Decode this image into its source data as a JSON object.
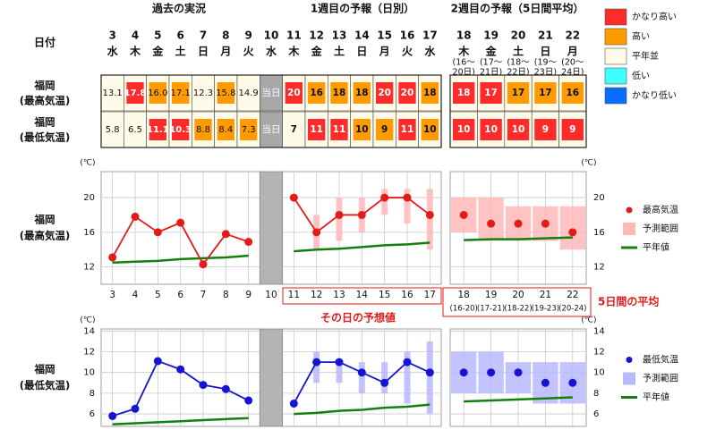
{
  "header": {
    "past": "過去の実況",
    "week1": "1週目の予報（日別）",
    "week2": "2週目の予報（5日間平均）",
    "date_label": "日付"
  },
  "legend": [
    {
      "label": "かなり高い",
      "color": "#ff2b2b"
    },
    {
      "label": "高い",
      "color": "#ff9b00"
    },
    {
      "label": "平年並",
      "color": "#fffbe8"
    },
    {
      "label": "低い",
      "color": "#40ffff"
    },
    {
      "label": "かなり低い",
      "color": "#0a6cff"
    }
  ],
  "days": [
    {
      "day": "3",
      "weekday": "水"
    },
    {
      "day": "4",
      "weekday": "木"
    },
    {
      "day": "5",
      "weekday": "金"
    },
    {
      "day": "6",
      "weekday": "土"
    },
    {
      "day": "7",
      "weekday": "日"
    },
    {
      "day": "8",
      "weekday": "月"
    },
    {
      "day": "9",
      "weekday": "火"
    },
    {
      "day": "10",
      "weekday": "水"
    },
    {
      "day": "11",
      "weekday": "木"
    },
    {
      "day": "12",
      "weekday": "金"
    },
    {
      "day": "13",
      "weekday": "土"
    },
    {
      "day": "14",
      "weekday": "日"
    },
    {
      "day": "15",
      "weekday": "月"
    },
    {
      "day": "16",
      "weekday": "火"
    },
    {
      "day": "17",
      "weekday": "水"
    },
    {
      "day": "18",
      "weekday": "木",
      "range": [
        "(16～",
        "20日)"
      ]
    },
    {
      "day": "19",
      "weekday": "金",
      "range": [
        "(17～",
        "21日)"
      ]
    },
    {
      "day": "20",
      "weekday": "土",
      "range": [
        "(18～",
        "22日)"
      ]
    },
    {
      "day": "21",
      "weekday": "日",
      "range": [
        "(19～",
        "23日)"
      ]
    },
    {
      "day": "22",
      "weekday": "月",
      "range": [
        "(20～",
        "24日)"
      ]
    }
  ],
  "rows": [
    {
      "label": [
        "福岡",
        "(最高気温)"
      ],
      "cells": [
        {
          "text": "13.1",
          "color": "#fffbe8"
        },
        {
          "text": "17.8",
          "color": "#ff2b2b"
        },
        {
          "text": "16.0",
          "color": "#ff9b00"
        },
        {
          "text": "17.1",
          "color": "#ff9b00"
        },
        {
          "text": "12.3",
          "color": "#fffbe8"
        },
        {
          "text": "15.8",
          "color": "#ff9b00"
        },
        {
          "text": "14.9",
          "color": "#fffbe8"
        },
        {
          "text": "当日",
          "color": "#a8a8a8"
        },
        {
          "text": "20",
          "color": "#ff2b2b"
        },
        {
          "text": "16",
          "color": "#ff9b00"
        },
        {
          "text": "18",
          "color": "#ff9b00"
        },
        {
          "text": "18",
          "color": "#ff9b00"
        },
        {
          "text": "20",
          "color": "#ff2b2b"
        },
        {
          "text": "20",
          "color": "#ff2b2b"
        },
        {
          "text": "18",
          "color": "#ff9b00"
        },
        {
          "text": "18",
          "color": "#ff2b2b"
        },
        {
          "text": "17",
          "color": "#ff2b2b"
        },
        {
          "text": "17",
          "color": "#ff9b00"
        },
        {
          "text": "17",
          "color": "#ff9b00"
        },
        {
          "text": "16",
          "color": "#ff9b00"
        }
      ]
    },
    {
      "label": [
        "福岡",
        "(最低気温)"
      ],
      "cells": [
        {
          "text": "5.8",
          "color": "#fffbe8"
        },
        {
          "text": "6.5",
          "color": "#fffbe8"
        },
        {
          "text": "11.1",
          "color": "#ff2b2b"
        },
        {
          "text": "10.3",
          "color": "#ff2b2b"
        },
        {
          "text": "8.8",
          "color": "#ff9b00"
        },
        {
          "text": "8.4",
          "color": "#ff9b00"
        },
        {
          "text": "7.3",
          "color": "#ff9b00"
        },
        {
          "text": "当日",
          "color": "#a8a8a8"
        },
        {
          "text": "7",
          "color": "#fffbe8"
        },
        {
          "text": "11",
          "color": "#ff2b2b"
        },
        {
          "text": "11",
          "color": "#ff2b2b"
        },
        {
          "text": "10",
          "color": "#ff9b00"
        },
        {
          "text": "9",
          "color": "#ff9b00"
        },
        {
          "text": "11",
          "color": "#ff2b2b"
        },
        {
          "text": "10",
          "color": "#ff9b00"
        },
        {
          "text": "10",
          "color": "#ff2b2b"
        },
        {
          "text": "10",
          "color": "#ff2b2b"
        },
        {
          "text": "10",
          "color": "#ff2b2b"
        },
        {
          "text": "9",
          "color": "#ff2b2b"
        },
        {
          "text": "9",
          "color": "#ff2b2b"
        }
      ]
    }
  ],
  "chart_data": [
    {
      "type": "line",
      "unit": "(℃)",
      "label": [
        "福岡",
        "(最高気温)"
      ],
      "ylim": [
        10,
        23
      ],
      "yticks": [
        12,
        16,
        20
      ],
      "grid": true,
      "color": "#e31b1b",
      "range_color": "#ffb8b8",
      "normal_color": "#12800f",
      "legend": [
        {
          "label": "最高気温",
          "kind": "dot"
        },
        {
          "label": "予測範囲",
          "kind": "range"
        },
        {
          "label": "平年値",
          "kind": "normal"
        }
      ],
      "notes": [
        "その日の予想値",
        "5日間の平均"
      ],
      "panels": [
        {
          "categories": [
            "3",
            "4",
            "5",
            "6",
            "7",
            "8",
            "9"
          ],
          "values": [
            13.1,
            17.8,
            16.0,
            17.1,
            12.3,
            15.8,
            14.9
          ],
          "normal": [
            12.5,
            12.6,
            12.7,
            12.9,
            13.0,
            13.1,
            13.3
          ],
          "connect": true
        },
        {
          "categories": [
            "10"
          ],
          "shaded": true
        },
        {
          "categories": [
            "11",
            "12",
            "13",
            "14",
            "15",
            "16",
            "17"
          ],
          "values": [
            20,
            16,
            18,
            18,
            20,
            20,
            18
          ],
          "low": [
            null,
            14,
            15,
            16,
            18,
            17,
            14
          ],
          "high": [
            null,
            18,
            20,
            20,
            21,
            21,
            21
          ],
          "normal": [
            13.8,
            14.0,
            14.1,
            14.3,
            14.5,
            14.6,
            14.8
          ],
          "connect": true
        },
        {
          "categories": [
            "18",
            "19",
            "20",
            "21",
            "22"
          ],
          "sub_labels": [
            "(16-20)",
            "(17-21)",
            "(18-22)",
            "(19-23)",
            "(20-24)"
          ],
          "values": [
            18,
            17,
            17,
            17,
            16
          ],
          "low": [
            16,
            15,
            15,
            15,
            14
          ],
          "high": [
            20,
            20,
            19,
            19,
            19
          ],
          "normal": [
            15.1,
            15.2,
            15.2,
            15.3,
            15.4
          ],
          "connect": false
        }
      ]
    },
    {
      "type": "line",
      "unit": "(℃)",
      "label": [
        "福岡",
        "(最低気温)"
      ],
      "ylim": [
        4.8,
        14.2
      ],
      "yticks": [
        6,
        8,
        10,
        12,
        14
      ],
      "grid": true,
      "color": "#1414d2",
      "range_color": "#b8b8ff",
      "normal_color": "#12800f",
      "legend": [
        {
          "label": "最低気温",
          "kind": "dot"
        },
        {
          "label": "予測範囲",
          "kind": "range"
        },
        {
          "label": "平年値",
          "kind": "normal"
        }
      ],
      "panels": [
        {
          "values": [
            5.8,
            6.5,
            11.1,
            10.3,
            8.8,
            8.4,
            7.3
          ],
          "normal": [
            5.0,
            5.1,
            5.2,
            5.3,
            5.4,
            5.5,
            5.6
          ],
          "connect": true
        },
        {
          "size": 1,
          "shaded": true
        },
        {
          "values": [
            7,
            11,
            11,
            10,
            9,
            11,
            10
          ],
          "low": [
            null,
            9,
            9,
            8,
            8,
            7,
            6
          ],
          "high": [
            null,
            12,
            11,
            11,
            11,
            12,
            13
          ],
          "normal": [
            6.0,
            6.1,
            6.3,
            6.4,
            6.6,
            6.7,
            6.9
          ],
          "connect": true
        },
        {
          "values": [
            10,
            10,
            10,
            9,
            9
          ],
          "low": [
            8,
            8,
            8,
            7,
            7
          ],
          "high": [
            12,
            12,
            11,
            11,
            11
          ],
          "normal": [
            7.2,
            7.3,
            7.4,
            7.5,
            7.6
          ],
          "connect": false
        }
      ]
    }
  ]
}
